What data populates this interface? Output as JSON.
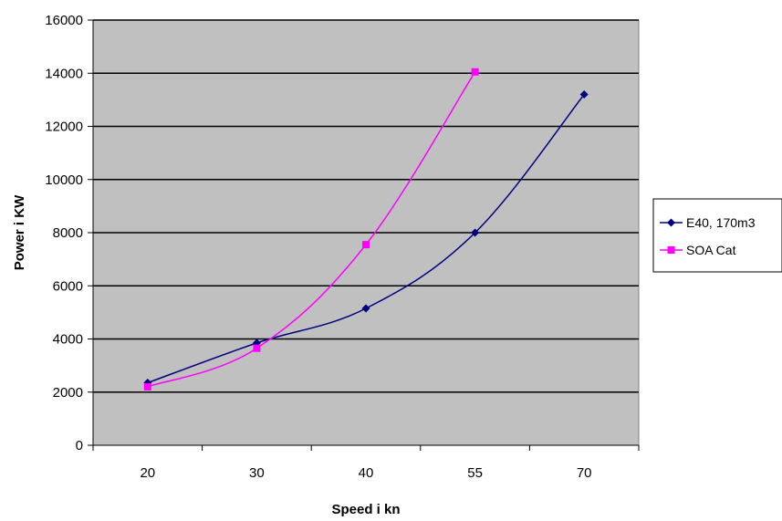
{
  "chart_data": {
    "type": "line",
    "categories": [
      "20",
      "30",
      "40",
      "55",
      "70"
    ],
    "series": [
      {
        "name": "E40, 170m3",
        "values": [
          2350,
          3850,
          5150,
          8000,
          13200
        ],
        "color": "#000080",
        "marker": "diamond"
      },
      {
        "name": "SOA Cat",
        "values": [
          2200,
          3650,
          7550,
          14050,
          null
        ],
        "color": "#ff00ff",
        "marker": "square"
      }
    ],
    "title": "",
    "xlabel": "Speed i kn",
    "ylabel": "Power i KW",
    "ylim": [
      0,
      16000
    ],
    "yticks": [
      0,
      2000,
      4000,
      6000,
      8000,
      10000,
      12000,
      14000,
      16000
    ],
    "grid": true,
    "plot_background": "#c0c0c0",
    "legend_position": "right"
  }
}
